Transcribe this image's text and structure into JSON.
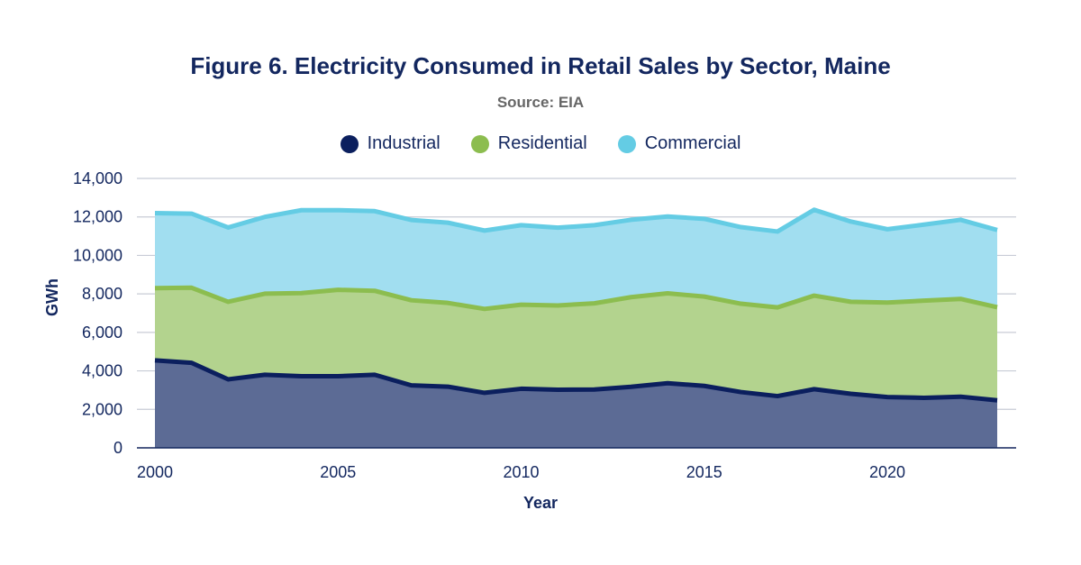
{
  "chart_data": {
    "type": "area",
    "stacked": true,
    "title": "Figure 6. Electricity Consumed in Retail Sales by Sector, Maine",
    "subtitle": "Source: EIA",
    "xlabel": "Year",
    "ylabel": "GWh",
    "x": [
      2000,
      2001,
      2002,
      2003,
      2004,
      2005,
      2006,
      2007,
      2008,
      2009,
      2010,
      2011,
      2012,
      2013,
      2014,
      2015,
      2016,
      2017,
      2018,
      2019,
      2020,
      2021,
      2022,
      2023
    ],
    "xticks": [
      "2000",
      "2005",
      "2010",
      "2015",
      "2020"
    ],
    "yticks": [
      "0",
      "2,000",
      "4,000",
      "6,000",
      "8,000",
      "10,000",
      "12,000",
      "14,000"
    ],
    "ylim": [
      0,
      14000
    ],
    "grid": true,
    "legend_position": "top-center",
    "series": [
      {
        "name": "Industrial",
        "color": "#0b1f5e",
        "fill": "#5c6b95",
        "values": [
          4550,
          4420,
          3560,
          3800,
          3720,
          3720,
          3800,
          3250,
          3180,
          2860,
          3070,
          3020,
          3030,
          3170,
          3360,
          3220,
          2900,
          2690,
          3050,
          2810,
          2640,
          2600,
          2660,
          2470
        ]
      },
      {
        "name": "Residential",
        "color": "#8cbd4f",
        "fill": "#b3d38e",
        "values": [
          3750,
          3900,
          4030,
          4210,
          4320,
          4490,
          4360,
          4420,
          4350,
          4360,
          4370,
          4380,
          4480,
          4660,
          4670,
          4640,
          4590,
          4610,
          4860,
          4780,
          4910,
          5050,
          5080,
          4840
        ]
      },
      {
        "name": "Commercial",
        "color": "#64cce4",
        "fill": "#a1def0",
        "values": [
          3900,
          3850,
          3860,
          3990,
          4310,
          4140,
          4140,
          4170,
          4170,
          4070,
          4130,
          4040,
          4060,
          4020,
          3990,
          4040,
          3980,
          3940,
          4460,
          4170,
          3810,
          3950,
          4110,
          4010
        ]
      }
    ]
  }
}
